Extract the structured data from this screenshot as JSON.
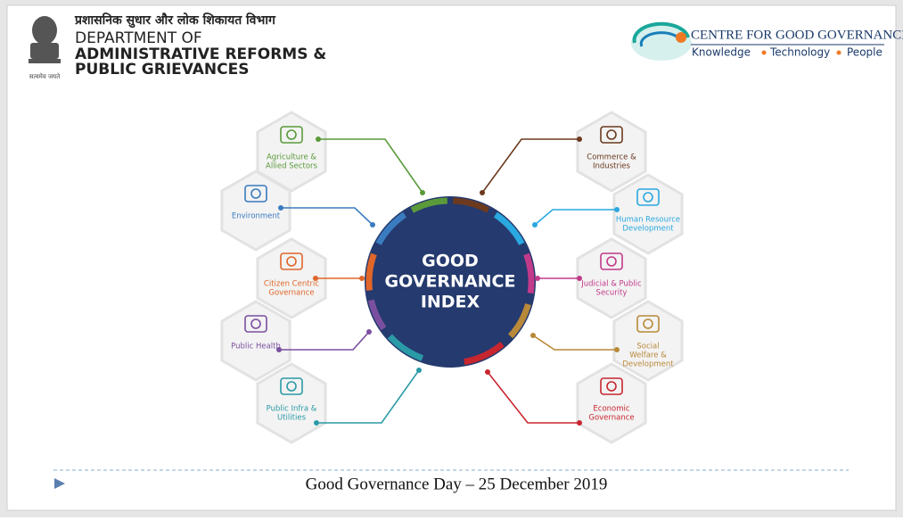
{
  "header": {
    "hindi": "प्रशासनिक सुधार और लोक शिकायत विभाग",
    "line1": "DEPARTMENT OF",
    "line2": "ADMINISTRATIVE REFORMS &",
    "line3": "PUBLIC GRIEVANCES",
    "motto": "सत्यमेव जयते"
  },
  "logo": {
    "title": "CENTRE FOR GOOD GOVERNANCE",
    "tags": [
      "Knowledge",
      "Technology",
      "People"
    ]
  },
  "center": {
    "lines": [
      "GOOD",
      "GOVERNANCE",
      "INDEX"
    ],
    "color": "#253a6e"
  },
  "nodes": [
    {
      "label": [
        "Agriculture &",
        "Allied Sectors"
      ],
      "color": "#5a9a3a"
    },
    {
      "label": [
        "Environment"
      ],
      "color": "#3b7bbf"
    },
    {
      "label": [
        "Citizen Centric",
        "Governance"
      ],
      "color": "#e0662a"
    },
    {
      "label": [
        "Public Health"
      ],
      "color": "#7b4fa0"
    },
    {
      "label": [
        "Public Infra &",
        "Utilities"
      ],
      "color": "#2a9aa6"
    },
    {
      "label": [
        "Commerce &",
        "Industries"
      ],
      "color": "#6b3a1f"
    },
    {
      "label": [
        "Human Resource",
        "Development"
      ],
      "color": "#2aa8e0"
    },
    {
      "label": [
        "Judicial & Public",
        "Security"
      ],
      "color": "#c23a8a"
    },
    {
      "label": [
        "Social",
        "Welfare &",
        "Development"
      ],
      "color": "#b8893a"
    },
    {
      "label": [
        "Economic",
        "Governance"
      ],
      "color": "#c8262f"
    }
  ],
  "footer": "Good Governance Day – 25 December 2019"
}
